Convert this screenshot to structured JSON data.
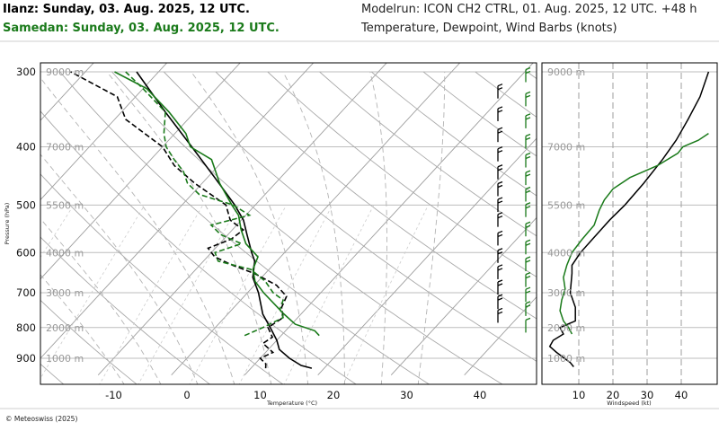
{
  "header": {
    "station1": "Ilanz: Sunday, 03. Aug. 2025, 12 UTC.",
    "station2": "Samedan: Sunday, 03. Aug. 2025, 12 UTC.",
    "modelrun": "Modelrun: ICON CH2 CTRL, 01. Aug. 2025, 12 UTC. +48 h",
    "subtitle": "Temperature, Dewpoint, Wind Barbs (knots)"
  },
  "colors": {
    "station1": "#000000",
    "station2": "#1a7a1a"
  },
  "footer": "© Meteoswiss (2025)",
  "chart_data": [
    {
      "type": "line",
      "subtype": "skew-T log-p",
      "xlabel": "Temperature (°C)",
      "ylabel": "Pressure (hPa)",
      "pressure_ticks": [
        300,
        400,
        500,
        600,
        700,
        800,
        900
      ],
      "temperature_ticks": [
        -10,
        0,
        10,
        20,
        30,
        40
      ],
      "altitude_labels": [
        "9000 m",
        "7000 m",
        "5500 m",
        "4000 m",
        "3000 m",
        "2000 m",
        "1000 m"
      ],
      "altitude_pressures": [
        300,
        400,
        500,
        600,
        700,
        800,
        900
      ],
      "ylim": [
        960,
        290
      ],
      "xlim_at_bottom": [
        -25,
        48
      ],
      "series": [
        {
          "name": "Ilanz",
          "variable": "temperature",
          "pressure": [
            935,
            925,
            900,
            870,
            840,
            800,
            760,
            700,
            660,
            620,
            600,
            560,
            530,
            500,
            450,
            400,
            350,
            300
          ],
          "temperature": [
            18.3,
            16.5,
            14.0,
            11.5,
            10.0,
            7.5,
            4.8,
            1.5,
            -1.2,
            -3.0,
            -4.5,
            -7.4,
            -9.7,
            -12.8,
            -19.0,
            -26.0,
            -34.0,
            -43.0
          ]
        },
        {
          "name": "Ilanz",
          "variable": "dewpoint",
          "pressure": [
            935,
            920,
            900,
            880,
            850,
            830,
            800,
            770,
            740,
            710,
            680,
            650,
            630,
            610,
            590,
            570,
            550,
            530,
            500,
            460,
            430,
            400,
            360,
            330,
            300
          ],
          "dewpoint": [
            12.0,
            11.5,
            10.0,
            11.0,
            8.5,
            9.0,
            7.2,
            8.0,
            6.5,
            5.8,
            3.0,
            -1.5,
            -5.5,
            -9.0,
            -11.0,
            -9.0,
            -8.5,
            -11.5,
            -14.0,
            -21.0,
            -26.0,
            -30.0,
            -38.5,
            -42.5,
            -52.0
          ]
        },
        {
          "name": "Samedan",
          "variable": "temperature",
          "pressure": [
            825,
            810,
            790,
            760,
            730,
            700,
            670,
            640,
            610,
            580,
            550,
            520,
            500,
            460,
            420,
            400,
            380,
            350,
            320,
            300
          ],
          "temperature": [
            15.2,
            14.0,
            10.5,
            7.7,
            5.0,
            2.2,
            -0.4,
            -2.2,
            -3.1,
            -6.4,
            -8.8,
            -11.0,
            -13.2,
            -17.6,
            -21.7,
            -26.2,
            -28.5,
            -33.5,
            -39.5,
            -46.0
          ]
        },
        {
          "name": "Samedan",
          "variable": "dewpoint",
          "pressure": [
            825,
            800,
            770,
            745,
            720,
            700,
            670,
            640,
            620,
            600,
            580,
            560,
            540,
            520,
            500,
            480,
            460,
            440,
            420,
            400,
            380,
            350,
            320,
            300
          ],
          "dewpoint": [
            5.0,
            6.5,
            8.0,
            6.5,
            5.8,
            3.5,
            1.0,
            -2.5,
            -8.0,
            -9.5,
            -7.0,
            -11.0,
            -13.5,
            -9.5,
            -13.0,
            -19.0,
            -22.0,
            -24.0,
            -26.8,
            -29.5,
            -31.5,
            -34.0,
            -40.0,
            -44.5
          ]
        }
      ]
    },
    {
      "type": "line",
      "xlabel": "Windspeed (kt)",
      "xticks": [
        10,
        20,
        30,
        40
      ],
      "altitude_labels": [
        "9000 m",
        "7000 m",
        "5500 m",
        "4000 m",
        "3000 m",
        "2000 m",
        "1000 m"
      ],
      "xlim": [
        0,
        48
      ],
      "series": [
        {
          "name": "Ilanz",
          "pressure": [
            930,
            915,
            900,
            880,
            860,
            840,
            820,
            800,
            780,
            740,
            700,
            650,
            630,
            600,
            570,
            530,
            500,
            460,
            420,
            390,
            360,
            330,
            300
          ],
          "speed": [
            8.5,
            7.5,
            5.8,
            3.5,
            1.5,
            2.5,
            5.5,
            4.5,
            9.0,
            9.0,
            7.5,
            8.0,
            8.0,
            10.5,
            14.0,
            19.0,
            23.5,
            29.0,
            34.5,
            38.5,
            42.0,
            45.5,
            48.0
          ]
        },
        {
          "name": "Samedan",
          "pressure": [
            820,
            800,
            780,
            750,
            720,
            690,
            660,
            630,
            600,
            570,
            540,
            510,
            490,
            470,
            450,
            430,
            410,
            400,
            390,
            380
          ],
          "speed": [
            8.0,
            7.0,
            5.5,
            4.5,
            5.0,
            6.0,
            5.5,
            6.5,
            8.0,
            11.0,
            14.5,
            16.0,
            17.5,
            20.0,
            25.0,
            33.0,
            39.0,
            40.5,
            45.0,
            48.0
          ]
        }
      ]
    }
  ]
}
